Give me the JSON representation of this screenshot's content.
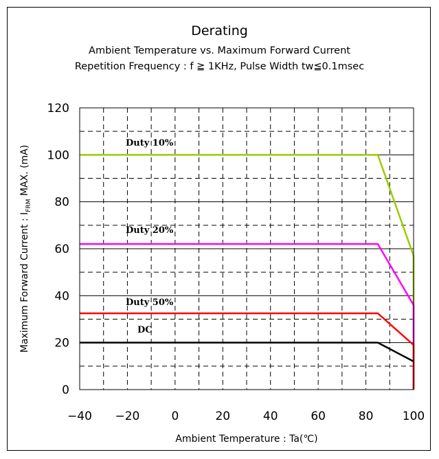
{
  "chart_data": {
    "type": "line",
    "title": "Derating",
    "subtitle_lines": [
      "Ambient Temperature vs. Maximum Forward Current",
      "Repetition Frequency : f ≧ 1KHz, Pulse Width tw≦0.1msec"
    ],
    "xlabel": "Ambient Temperature : Ta(℃)",
    "ylabel": {
      "prefix": "Maximum Forward Current : I",
      "subscript": "FRM",
      "suffix": " MAX. (mA)"
    },
    "xlim": [
      -40,
      100
    ],
    "ylim": [
      0,
      120
    ],
    "x_ticks": [
      -40,
      -20,
      0,
      20,
      40,
      60,
      80,
      100
    ],
    "y_ticks": [
      0,
      20,
      40,
      60,
      80,
      100,
      120
    ],
    "x_tick_labels": [
      "−40",
      "−20",
      "0",
      "20",
      "40",
      "60",
      "80",
      "100"
    ],
    "y_tick_labels": [
      "0",
      "20",
      "40",
      "60",
      "80",
      "100",
      "120"
    ],
    "grid": true,
    "series": [
      {
        "name": "Duty 10%",
        "color": "#99cc00",
        "x": [
          -40,
          85,
          100,
          100
        ],
        "y": [
          100,
          100,
          57,
          0
        ]
      },
      {
        "name": "Duty 20%",
        "color": "#ff00ff",
        "x": [
          -40,
          85,
          100,
          100
        ],
        "y": [
          62,
          62,
          36,
          0
        ]
      },
      {
        "name": "Duty 50%",
        "color": "#ff0000",
        "x": [
          -40,
          85,
          100,
          100
        ],
        "y": [
          32.5,
          32.5,
          19,
          0
        ]
      },
      {
        "name": "DC",
        "color": "#000000",
        "x": [
          -40,
          85,
          100
        ],
        "y": [
          20,
          20,
          12
        ]
      }
    ]
  }
}
